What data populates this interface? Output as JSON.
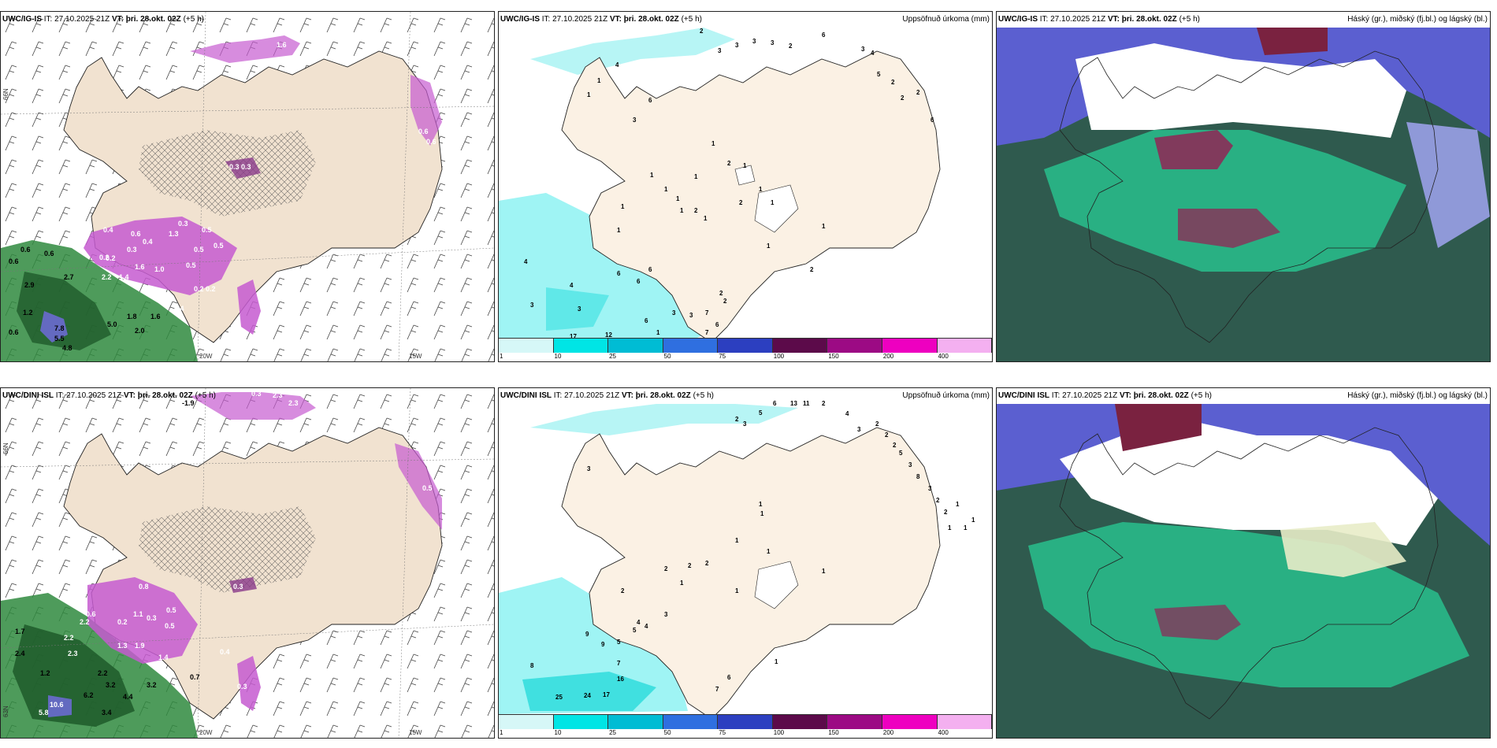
{
  "panels": {
    "p1": {
      "model": "UWC/IG-IS",
      "init": "IT: 27.10.2025 21Z",
      "vt_label": "VT:",
      "vt": "þri. 28.okt. 02Z",
      "lead": "(+5 h)",
      "lon1": "20W",
      "lon2": "15W",
      "lat": "66N"
    },
    "p2": {
      "model": "UWC/IG-IS",
      "init": "IT: 27.10.2025 21Z",
      "vt_label": "VT:",
      "vt": "þri. 28.okt. 02Z",
      "lead": "(+5 h)",
      "right": "Uppsöfnuð úrkoma (mm)"
    },
    "p3": {
      "model": "UWC/IG-IS",
      "init": "IT: 27.10.2025 21Z",
      "vt_label": "VT:",
      "vt": "þri. 28.okt. 02Z",
      "lead": "(+5 h)",
      "right": "Háský (gr.), miðský (fj.bl.) og lágský (bl.)"
    },
    "p4": {
      "model": "UWC/DINI ISL",
      "init": "IT: 27.10.2025 21Z",
      "vt_label": "VT:",
      "vt": "þri. 28.okt. 02Z",
      "lead": "(+5 h)",
      "lon1": "20W",
      "lon2": "15W",
      "lat1": "66N",
      "lat2": "63N"
    },
    "p5": {
      "model": "UWC/DINI ISL",
      "init": "IT: 27.10.2025 21Z",
      "vt_label": "VT:",
      "vt": "þri. 28.okt. 02Z",
      "lead": "(+5 h)",
      "right": "Uppsöfnuð úrkoma (mm)"
    },
    "p6": {
      "model": "UWC/DINI ISL",
      "init": "IT: 27.10.2025 21Z",
      "vt_label": "VT:",
      "vt": "þri. 28.okt. 02Z",
      "lead": "(+5 h)",
      "right": "Háský (gr.), miðský (fj.bl.) og lágský (bl.)"
    }
  },
  "colorbar": {
    "ticks": [
      "1",
      "10",
      "25",
      "50",
      "75",
      "100",
      "150",
      "200",
      "400"
    ],
    "colors": [
      "#d6f7f7",
      "#00e5e5",
      "#00bcd4",
      "#2f6fe0",
      "#2c3fc0",
      "#5c0a4a",
      "#9c0a84",
      "#ee00c0",
      "#f4b0f0"
    ]
  },
  "precip_labels_top": [
    "2",
    "3",
    "3",
    "3",
    "3",
    "2",
    "6",
    "3",
    "4",
    "5",
    "2",
    "2",
    "2",
    "6",
    "1",
    "1",
    "1",
    "6",
    "3",
    "1",
    "2",
    "1",
    "1",
    "1",
    "1",
    "2",
    "1",
    "1",
    "1",
    "2",
    "1",
    "1",
    "1",
    "1",
    "1",
    "2",
    "6",
    "6",
    "6",
    "4",
    "4",
    "3",
    "3",
    "3",
    "6",
    "3",
    "7",
    "6",
    "7",
    "17",
    "12",
    "1",
    "2",
    "2",
    "4"
  ],
  "precip_labels_bottom": [
    "2",
    "5",
    "3",
    "6",
    "13",
    "11",
    "2",
    "4",
    "3",
    "2",
    "2",
    "2",
    "5",
    "3",
    "8",
    "3",
    "2",
    "2",
    "1",
    "1",
    "1",
    "1",
    "3",
    "1",
    "1",
    "1",
    "1",
    "2",
    "2",
    "2",
    "1",
    "1",
    "1",
    "2",
    "3",
    "5",
    "4",
    "4",
    "9",
    "9",
    "5",
    "7",
    "8",
    "16",
    "24",
    "17",
    "25",
    "6",
    "7",
    "1"
  ],
  "synop_labels_top": [
    "0.6",
    "1.6",
    "0.3",
    "0.3",
    "0.4",
    "0.3",
    "0.2",
    "0.3",
    "0.5",
    "0.5",
    "0.6",
    "0.6",
    "2.7",
    "2.9",
    "1.2",
    "0.6",
    "7.8",
    "5.5",
    "4.8",
    "5.0",
    "2.0",
    "1.8",
    "1.6",
    "0.4",
    "0.2",
    "2.2",
    "1.4",
    "1.0",
    "1.6",
    "0.5",
    "0.2",
    "0.2",
    "0.6",
    "0.4",
    "1.3",
    "0.5",
    "0.6",
    "0.6"
  ],
  "synop_labels_bottom": [
    "-1.9",
    "0.3",
    "2.3",
    "2.3",
    "0.8",
    "0.3",
    "1.1",
    "0.5",
    "0.5",
    "1.9",
    "1.4",
    "1.3",
    "0.7",
    "0.3",
    "0.4",
    "2.2",
    "2.2",
    "1.7",
    "2.4",
    "1.2",
    "2.2",
    "3.2",
    "3.2",
    "4.4",
    "6.2",
    "10.6",
    "5.8",
    "3.4",
    "0.6",
    "2.3",
    "0.2",
    "0.3",
    "0.5"
  ]
}
